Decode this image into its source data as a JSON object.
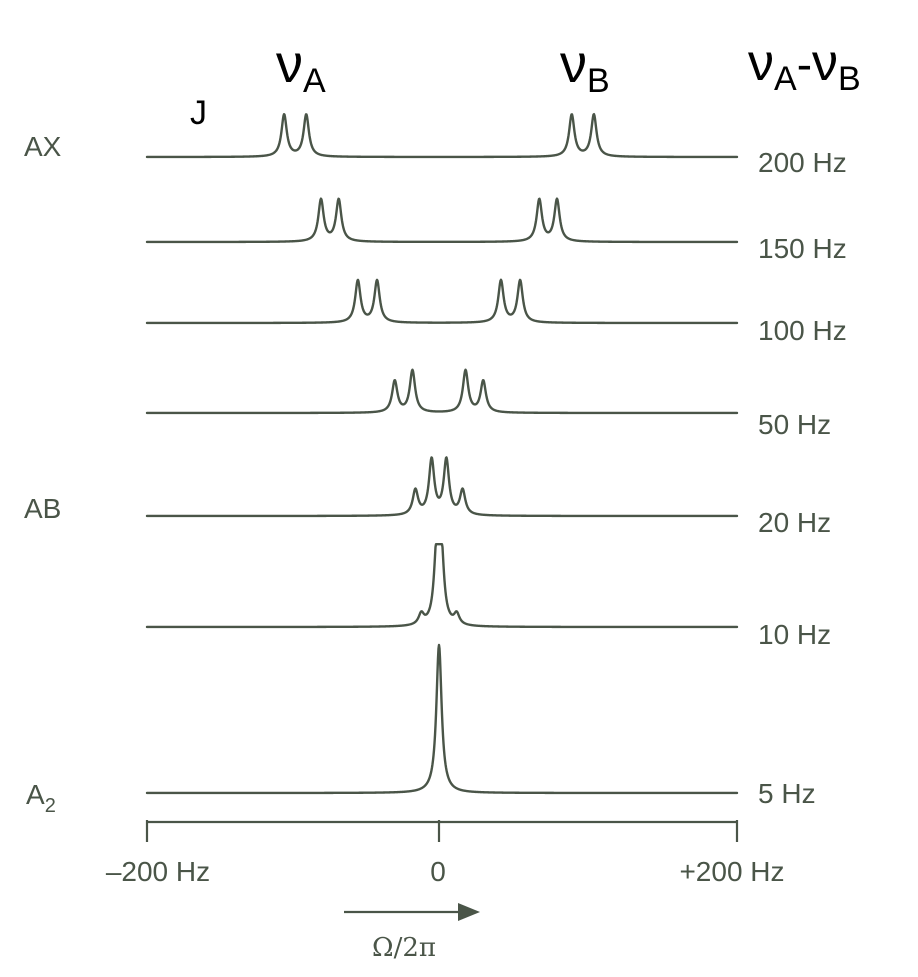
{
  "header": {
    "j_label": "J",
    "nu_a": {
      "symbol": "ν",
      "sub": "A"
    },
    "nu_b": {
      "symbol": "ν",
      "sub": "B"
    },
    "nu_diff": {
      "sym1": "ν",
      "sub1": "A",
      "dash": "-",
      "sym2": "ν",
      "sub2": "B"
    }
  },
  "row_labels": {
    "ax": "AX",
    "ab": "AB",
    "a2": {
      "main": "A",
      "sub": "2"
    }
  },
  "spectra": [
    {
      "separation": "200 Hz",
      "peaks_hz": [
        -105,
        -90,
        90,
        105
      ],
      "heights": [
        1,
        1,
        1,
        1
      ]
    },
    {
      "separation": "150 Hz",
      "peaks_hz": [
        -80,
        -68,
        68,
        80
      ],
      "heights": [
        1,
        1,
        1,
        1
      ]
    },
    {
      "separation": "100 Hz",
      "peaks_hz": [
        -55,
        -42,
        42,
        55
      ],
      "heights": [
        1,
        1,
        1,
        1
      ]
    },
    {
      "separation": "50 Hz",
      "peaks_hz": [
        -30,
        -18,
        18,
        30
      ],
      "heights": [
        0.75,
        1,
        1,
        0.75
      ]
    },
    {
      "separation": "20 Hz",
      "peaks_hz": [
        -16,
        -5,
        5,
        16
      ],
      "heights": [
        0.45,
        1,
        1,
        0.45
      ]
    },
    {
      "separation": "10 Hz",
      "peaks_hz": [
        -12,
        -1.5,
        1.5,
        12
      ],
      "heights": [
        0.15,
        1,
        1,
        0.15
      ]
    },
    {
      "separation": "5 Hz",
      "peaks_hz": [
        0
      ],
      "heights": [
        1
      ]
    }
  ],
  "x_axis": {
    "range_hz": [
      -200,
      200
    ],
    "ticks": [
      {
        "value": -200,
        "label": "–200 Hz"
      },
      {
        "value": 0,
        "label": "0"
      },
      {
        "value": 200,
        "label": "+200 Hz"
      }
    ],
    "arrow_label": "Ω/2π"
  }
}
